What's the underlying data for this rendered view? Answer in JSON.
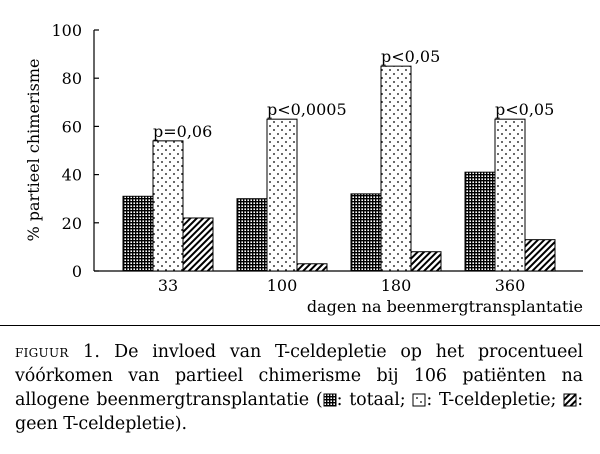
{
  "chart_data": {
    "type": "bar",
    "ylabel": "% partieel chimerisme",
    "xlabel": "dagen na beenmergtransplantatie",
    "ylim": [
      0,
      100
    ],
    "yticks": [
      "0",
      "20",
      "40",
      "60",
      "80",
      "100"
    ],
    "categories": [
      "33",
      "100",
      "180",
      "360"
    ],
    "series": [
      {
        "name": "totaal",
        "values": [
          31,
          30,
          32,
          41
        ]
      },
      {
        "name": "T-celdepletie",
        "values": [
          54,
          63,
          85,
          63
        ]
      },
      {
        "name": "geen T-celdepletie",
        "values": [
          22,
          3,
          8,
          13
        ]
      }
    ],
    "annotations": [
      "p=0,06",
      "p<0,0005",
      "p<0,05",
      "p<0,05"
    ],
    "grid": false,
    "legend": "in caption"
  },
  "caption": {
    "label": "figuur 1.",
    "text": "De invloed van T-celdepletie op het procentueel vóórkomen van partieel chimerisme bij 106 patiënten na allogene beenmergtransplantatie (",
    "legend_items": [
      "totaal",
      "T-celdepletie",
      "geen T-celdepletie"
    ],
    "end": ")."
  }
}
